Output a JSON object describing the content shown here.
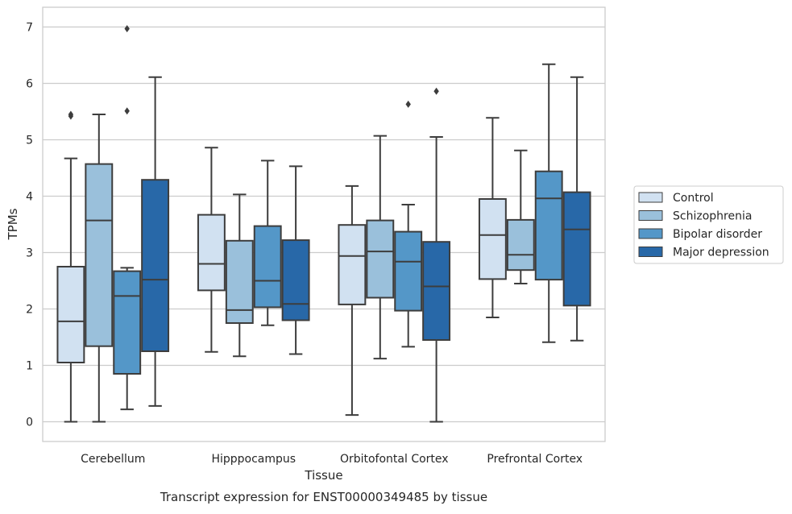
{
  "chart_data": {
    "type": "box",
    "title": "",
    "caption": "Transcript expression for ENST00000349485 by tissue",
    "xlabel": "Tissue",
    "ylabel": "TPMs",
    "ylim": [
      -0.35,
      7.35
    ],
    "yticks": [
      0,
      1,
      2,
      3,
      4,
      5,
      6,
      7
    ],
    "grid": "horizontal",
    "legend_position": "right",
    "categories": [
      "Cerebellum",
      "Hipppocampus",
      "Orbitofontal Cortex",
      "Prefrontal Cortex"
    ],
    "series": [
      {
        "name": "Control",
        "color": "#d1e1f1",
        "boxes": [
          {
            "whisker_low": 0.0,
            "q1": 1.05,
            "median": 1.78,
            "q3": 2.75,
            "whisker_high": 4.67,
            "outliers": [
              5.42,
              5.45
            ]
          },
          {
            "whisker_low": 1.24,
            "q1": 2.33,
            "median": 2.8,
            "q3": 3.67,
            "whisker_high": 4.86,
            "outliers": []
          },
          {
            "whisker_low": 0.12,
            "q1": 2.08,
            "median": 2.94,
            "q3": 3.49,
            "whisker_high": 4.18,
            "outliers": []
          },
          {
            "whisker_low": 1.85,
            "q1": 2.53,
            "median": 3.31,
            "q3": 3.95,
            "whisker_high": 5.39,
            "outliers": []
          }
        ]
      },
      {
        "name": "Schizophrenia",
        "color": "#9ac0db",
        "boxes": [
          {
            "whisker_low": 0.0,
            "q1": 1.34,
            "median": 3.57,
            "q3": 4.57,
            "whisker_high": 5.45,
            "outliers": []
          },
          {
            "whisker_low": 1.16,
            "q1": 1.75,
            "median": 1.98,
            "q3": 3.21,
            "whisker_high": 4.03,
            "outliers": []
          },
          {
            "whisker_low": 1.12,
            "q1": 2.2,
            "median": 3.02,
            "q3": 3.57,
            "whisker_high": 5.07,
            "outliers": []
          },
          {
            "whisker_low": 2.45,
            "q1": 2.69,
            "median": 2.96,
            "q3": 3.58,
            "whisker_high": 4.81,
            "outliers": []
          }
        ]
      },
      {
        "name": "Bipolar disorder",
        "color": "#5497c8",
        "boxes": [
          {
            "whisker_low": 0.22,
            "q1": 0.85,
            "median": 2.23,
            "q3": 2.67,
            "whisker_high": 2.73,
            "outliers": [
              5.51,
              6.97
            ]
          },
          {
            "whisker_low": 1.71,
            "q1": 2.03,
            "median": 2.5,
            "q3": 3.47,
            "whisker_high": 4.63,
            "outliers": []
          },
          {
            "whisker_low": 1.33,
            "q1": 1.97,
            "median": 2.84,
            "q3": 3.37,
            "whisker_high": 3.85,
            "outliers": [
              5.63
            ]
          },
          {
            "whisker_low": 1.41,
            "q1": 2.52,
            "median": 3.96,
            "q3": 4.44,
            "whisker_high": 6.34,
            "outliers": []
          }
        ]
      },
      {
        "name": "Major depression",
        "color": "#2868a8",
        "boxes": [
          {
            "whisker_low": 0.28,
            "q1": 1.25,
            "median": 2.52,
            "q3": 4.29,
            "whisker_high": 6.11,
            "outliers": []
          },
          {
            "whisker_low": 1.2,
            "q1": 1.8,
            "median": 2.09,
            "q3": 3.22,
            "whisker_high": 4.53,
            "outliers": []
          },
          {
            "whisker_low": 0.0,
            "q1": 1.45,
            "median": 2.4,
            "q3": 3.19,
            "whisker_high": 5.05,
            "outliers": [
              5.86
            ]
          },
          {
            "whisker_low": 1.44,
            "q1": 2.06,
            "median": 3.41,
            "q3": 4.07,
            "whisker_high": 6.11,
            "outliers": []
          }
        ]
      }
    ]
  }
}
